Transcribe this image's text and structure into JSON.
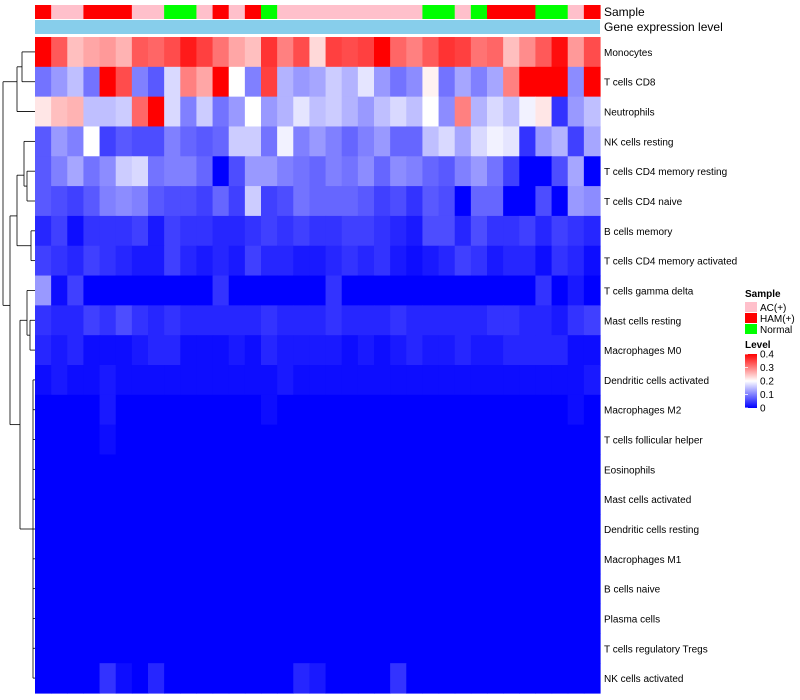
{
  "chart_data": {
    "type": "heatmap",
    "annotation_tracks": [
      {
        "name": "Sample",
        "label": "Sample"
      },
      {
        "name": "Gene expression level",
        "label": "Gene expression level"
      }
    ],
    "sample_groups": [
      "HAM(+)",
      "AC(+)",
      "AC(+)",
      "HAM(+)",
      "HAM(+)",
      "HAM(+)",
      "AC(+)",
      "AC(+)",
      "Normal",
      "Normal",
      "AC(+)",
      "HAM(+)",
      "AC(+)",
      "HAM(+)",
      "Normal",
      "AC(+)",
      "AC(+)",
      "AC(+)",
      "AC(+)",
      "AC(+)",
      "AC(+)",
      "AC(+)",
      "AC(+)",
      "AC(+)",
      "Normal",
      "Normal",
      "AC(+)",
      "Normal",
      "HAM(+)",
      "HAM(+)",
      "HAM(+)",
      "Normal",
      "Normal",
      "AC(+)",
      "HAM(+)"
    ],
    "rows": [
      "Monocytes",
      "T cells CD8",
      "Neutrophils",
      "NK cells resting",
      "T cells CD4 memory resting",
      "T cells CD4 naive",
      "B cells memory",
      "T cells CD4 memory activated",
      "T cells gamma delta",
      "Mast cells resting",
      "Macrophages M0",
      "Dendritic cells activated",
      "Macrophages M2",
      "T cells follicular helper",
      "Eosinophils",
      "Mast cells activated",
      "Dendritic cells resting",
      "Macrophages M1",
      "B cells naive",
      "Plasma cells",
      "T cells regulatory  Tregs",
      "NK cells activated"
    ],
    "values": [
      [
        0.4,
        0.33,
        0.25,
        0.27,
        0.28,
        0.26,
        0.33,
        0.32,
        0.34,
        0.38,
        0.35,
        0.31,
        0.27,
        0.25,
        0.36,
        0.3,
        0.34,
        0.23,
        0.35,
        0.34,
        0.35,
        0.4,
        0.32,
        0.3,
        0.33,
        0.36,
        0.35,
        0.31,
        0.32,
        0.25,
        0.29,
        0.33,
        0.39,
        0.28,
        0.34
      ],
      [
        0.09,
        0.12,
        0.15,
        0.09,
        0.4,
        0.34,
        0.1,
        0.07,
        0.17,
        0.3,
        0.27,
        0.41,
        0.2,
        0.1,
        0.35,
        0.14,
        0.12,
        0.13,
        0.16,
        0.14,
        0.18,
        0.12,
        0.09,
        0.11,
        0.21,
        0.09,
        0.13,
        0.1,
        0.13,
        0.3,
        0.4,
        0.42,
        0.4,
        0.11,
        0.4
      ],
      [
        0.22,
        0.25,
        0.26,
        0.15,
        0.15,
        0.16,
        0.32,
        0.4,
        0.17,
        0.1,
        0.16,
        0.09,
        0.12,
        0.2,
        0.12,
        0.14,
        0.18,
        0.15,
        0.16,
        0.14,
        0.12,
        0.15,
        0.17,
        0.15,
        0.2,
        0.11,
        0.3,
        0.14,
        0.17,
        0.15,
        0.19,
        0.22,
        0.04,
        0.12,
        0.15
      ],
      [
        0.07,
        0.12,
        0.1,
        0.2,
        0.05,
        0.07,
        0.06,
        0.06,
        0.1,
        0.08,
        0.07,
        0.08,
        0.16,
        0.16,
        0.09,
        0.19,
        0.1,
        0.12,
        0.1,
        0.08,
        0.1,
        0.12,
        0.08,
        0.08,
        0.15,
        0.17,
        0.13,
        0.17,
        0.19,
        0.18,
        0.04,
        0.12,
        0.14,
        0.05,
        0.13
      ],
      [
        0.07,
        0.1,
        0.13,
        0.09,
        0.11,
        0.16,
        0.17,
        0.09,
        0.1,
        0.1,
        0.08,
        0.0,
        0.06,
        0.12,
        0.12,
        0.1,
        0.09,
        0.08,
        0.1,
        0.09,
        0.11,
        0.08,
        0.11,
        0.1,
        0.08,
        0.07,
        0.1,
        0.12,
        0.09,
        0.05,
        0.0,
        0.0,
        0.06,
        0.13,
        0.0
      ],
      [
        0.07,
        0.06,
        0.05,
        0.07,
        0.1,
        0.11,
        0.1,
        0.07,
        0.06,
        0.06,
        0.05,
        0.08,
        0.05,
        0.16,
        0.05,
        0.06,
        0.09,
        0.08,
        0.08,
        0.08,
        0.07,
        0.05,
        0.06,
        0.04,
        0.07,
        0.06,
        0.0,
        0.08,
        0.08,
        0.0,
        0.0,
        0.06,
        0.0,
        0.12,
        0.11
      ],
      [
        0.03,
        0.05,
        0.01,
        0.04,
        0.04,
        0.04,
        0.05,
        0.02,
        0.05,
        0.04,
        0.04,
        0.03,
        0.03,
        0.04,
        0.05,
        0.04,
        0.05,
        0.04,
        0.04,
        0.05,
        0.05,
        0.04,
        0.03,
        0.02,
        0.06,
        0.06,
        0.03,
        0.06,
        0.04,
        0.04,
        0.05,
        0.03,
        0.05,
        0.04,
        0.03
      ],
      [
        0.05,
        0.04,
        0.03,
        0.05,
        0.04,
        0.03,
        0.02,
        0.02,
        0.05,
        0.03,
        0.02,
        0.03,
        0.02,
        0.05,
        0.03,
        0.03,
        0.02,
        0.02,
        0.03,
        0.04,
        0.03,
        0.04,
        0.02,
        0.01,
        0.02,
        0.03,
        0.05,
        0.04,
        0.02,
        0.03,
        0.03,
        0.01,
        0.04,
        0.03,
        0.01
      ],
      [
        0.12,
        0.01,
        0.05,
        0.0,
        0.0,
        0.0,
        0.0,
        0.0,
        0.0,
        0.0,
        0.0,
        0.04,
        0.0,
        0.0,
        0.0,
        0.0,
        0.0,
        0.0,
        0.04,
        0.0,
        0.0,
        0.0,
        0.0,
        0.0,
        0.0,
        0.0,
        0.0,
        0.0,
        0.0,
        0.0,
        0.0,
        0.04,
        0.0,
        0.02,
        0.0
      ],
      [
        0.04,
        0.03,
        0.03,
        0.05,
        0.04,
        0.06,
        0.04,
        0.03,
        0.04,
        0.03,
        0.03,
        0.03,
        0.03,
        0.03,
        0.04,
        0.03,
        0.03,
        0.03,
        0.04,
        0.03,
        0.03,
        0.03,
        0.04,
        0.03,
        0.03,
        0.03,
        0.03,
        0.03,
        0.04,
        0.04,
        0.03,
        0.03,
        0.02,
        0.04,
        0.05
      ],
      [
        0.03,
        0.02,
        0.03,
        0.01,
        0.01,
        0.01,
        0.02,
        0.03,
        0.03,
        0.01,
        0.01,
        0.01,
        0.02,
        0.01,
        0.03,
        0.02,
        0.02,
        0.02,
        0.02,
        0.01,
        0.02,
        0.01,
        0.02,
        0.03,
        0.02,
        0.02,
        0.03,
        0.02,
        0.02,
        0.03,
        0.03,
        0.03,
        0.03,
        0.01,
        0.01
      ],
      [
        0.01,
        0.02,
        0.01,
        0.01,
        0.02,
        0.01,
        0.01,
        0.01,
        0.01,
        0.01,
        0.01,
        0.01,
        0.01,
        0.01,
        0.01,
        0.02,
        0.01,
        0.01,
        0.01,
        0.01,
        0.01,
        0.01,
        0.01,
        0.01,
        0.01,
        0.01,
        0.01,
        0.01,
        0.01,
        0.01,
        0.01,
        0.01,
        0.01,
        0.01,
        0.02
      ],
      [
        0.0,
        0.0,
        0.0,
        0.0,
        0.02,
        0.0,
        0.0,
        0.0,
        0.0,
        0.0,
        0.0,
        0.0,
        0.0,
        0.0,
        0.01,
        0.0,
        0.0,
        0.0,
        0.0,
        0.0,
        0.0,
        0.0,
        0.0,
        0.0,
        0.0,
        0.0,
        0.0,
        0.0,
        0.0,
        0.0,
        0.0,
        0.0,
        0.0,
        0.01,
        0.0
      ],
      [
        0.0,
        0.0,
        0.0,
        0.0,
        0.01,
        0.0,
        0.0,
        0.0,
        0.0,
        0.0,
        0.0,
        0.0,
        0.0,
        0.0,
        0.0,
        0.0,
        0.0,
        0.0,
        0.0,
        0.0,
        0.0,
        0.0,
        0.0,
        0.0,
        0.0,
        0.0,
        0.0,
        0.0,
        0.0,
        0.0,
        0.0,
        0.0,
        0.0,
        0.0,
        0.0
      ],
      [
        0.0,
        0.0,
        0.0,
        0.0,
        0.0,
        0.0,
        0.0,
        0.0,
        0.0,
        0.0,
        0.0,
        0.0,
        0.0,
        0.0,
        0.0,
        0.0,
        0.0,
        0.0,
        0.0,
        0.0,
        0.0,
        0.0,
        0.0,
        0.0,
        0.0,
        0.0,
        0.0,
        0.0,
        0.0,
        0.0,
        0.0,
        0.0,
        0.0,
        0.0,
        0.0
      ],
      [
        0.0,
        0.0,
        0.0,
        0.0,
        0.0,
        0.0,
        0.0,
        0.0,
        0.0,
        0.0,
        0.0,
        0.0,
        0.0,
        0.0,
        0.0,
        0.0,
        0.0,
        0.0,
        0.0,
        0.0,
        0.0,
        0.0,
        0.0,
        0.0,
        0.0,
        0.0,
        0.0,
        0.0,
        0.0,
        0.0,
        0.0,
        0.0,
        0.0,
        0.0,
        0.0
      ],
      [
        0.0,
        0.0,
        0.0,
        0.0,
        0.0,
        0.0,
        0.0,
        0.0,
        0.0,
        0.0,
        0.0,
        0.0,
        0.0,
        0.0,
        0.0,
        0.0,
        0.0,
        0.0,
        0.0,
        0.0,
        0.0,
        0.0,
        0.0,
        0.0,
        0.0,
        0.0,
        0.0,
        0.0,
        0.0,
        0.0,
        0.0,
        0.0,
        0.0,
        0.0,
        0.0
      ],
      [
        0.0,
        0.0,
        0.0,
        0.0,
        0.0,
        0.0,
        0.0,
        0.0,
        0.0,
        0.0,
        0.0,
        0.0,
        0.0,
        0.0,
        0.0,
        0.0,
        0.0,
        0.0,
        0.0,
        0.0,
        0.0,
        0.0,
        0.0,
        0.0,
        0.0,
        0.0,
        0.0,
        0.0,
        0.0,
        0.0,
        0.0,
        0.0,
        0.0,
        0.0,
        0.0
      ],
      [
        0.0,
        0.0,
        0.0,
        0.0,
        0.0,
        0.0,
        0.0,
        0.0,
        0.0,
        0.0,
        0.0,
        0.0,
        0.0,
        0.0,
        0.0,
        0.0,
        0.0,
        0.0,
        0.0,
        0.0,
        0.0,
        0.0,
        0.0,
        0.0,
        0.0,
        0.0,
        0.0,
        0.0,
        0.0,
        0.0,
        0.0,
        0.0,
        0.0,
        0.0,
        0.0
      ],
      [
        0.0,
        0.0,
        0.0,
        0.0,
        0.0,
        0.0,
        0.0,
        0.0,
        0.0,
        0.0,
        0.0,
        0.0,
        0.0,
        0.0,
        0.0,
        0.0,
        0.0,
        0.0,
        0.0,
        0.0,
        0.0,
        0.0,
        0.0,
        0.0,
        0.0,
        0.0,
        0.0,
        0.0,
        0.0,
        0.0,
        0.0,
        0.0,
        0.0,
        0.0,
        0.0
      ],
      [
        0.0,
        0.0,
        0.0,
        0.0,
        0.0,
        0.0,
        0.0,
        0.0,
        0.0,
        0.0,
        0.0,
        0.0,
        0.0,
        0.0,
        0.0,
        0.0,
        0.0,
        0.0,
        0.0,
        0.0,
        0.0,
        0.0,
        0.0,
        0.0,
        0.0,
        0.0,
        0.0,
        0.0,
        0.0,
        0.0,
        0.0,
        0.0,
        0.0,
        0.0,
        0.0
      ],
      [
        0.0,
        0.0,
        0.0,
        0.0,
        0.04,
        0.01,
        0.0,
        0.03,
        0.0,
        0.0,
        0.0,
        0.0,
        0.0,
        0.0,
        0.0,
        0.0,
        0.03,
        0.02,
        0.0,
        0.0,
        0.0,
        0.0,
        0.04,
        0.0,
        0.0,
        0.0,
        0.0,
        0.0,
        0.0,
        0.0,
        0.0,
        0.0,
        0.0,
        0.0,
        0.0
      ]
    ],
    "color_scale": {
      "min": 0,
      "max": 0.4,
      "low": "#0000ff",
      "mid": "#ffffff",
      "high": "#ff0000",
      "mid_value": 0.2
    },
    "legend": {
      "sample_title": "Sample",
      "sample_entries": [
        {
          "label": "AC(+)",
          "color": "#ffc0cb"
        },
        {
          "label": "HAM(+)",
          "color": "#ff0000"
        },
        {
          "label": "Normal",
          "color": "#00ff00"
        }
      ],
      "level_title": "Level",
      "level_ticks": [
        "0.4",
        "0.3",
        "0.2",
        "0.1",
        "0"
      ],
      "placement": "right"
    },
    "expression_track_color": "#87ceeb",
    "dendrogram": "rows"
  }
}
